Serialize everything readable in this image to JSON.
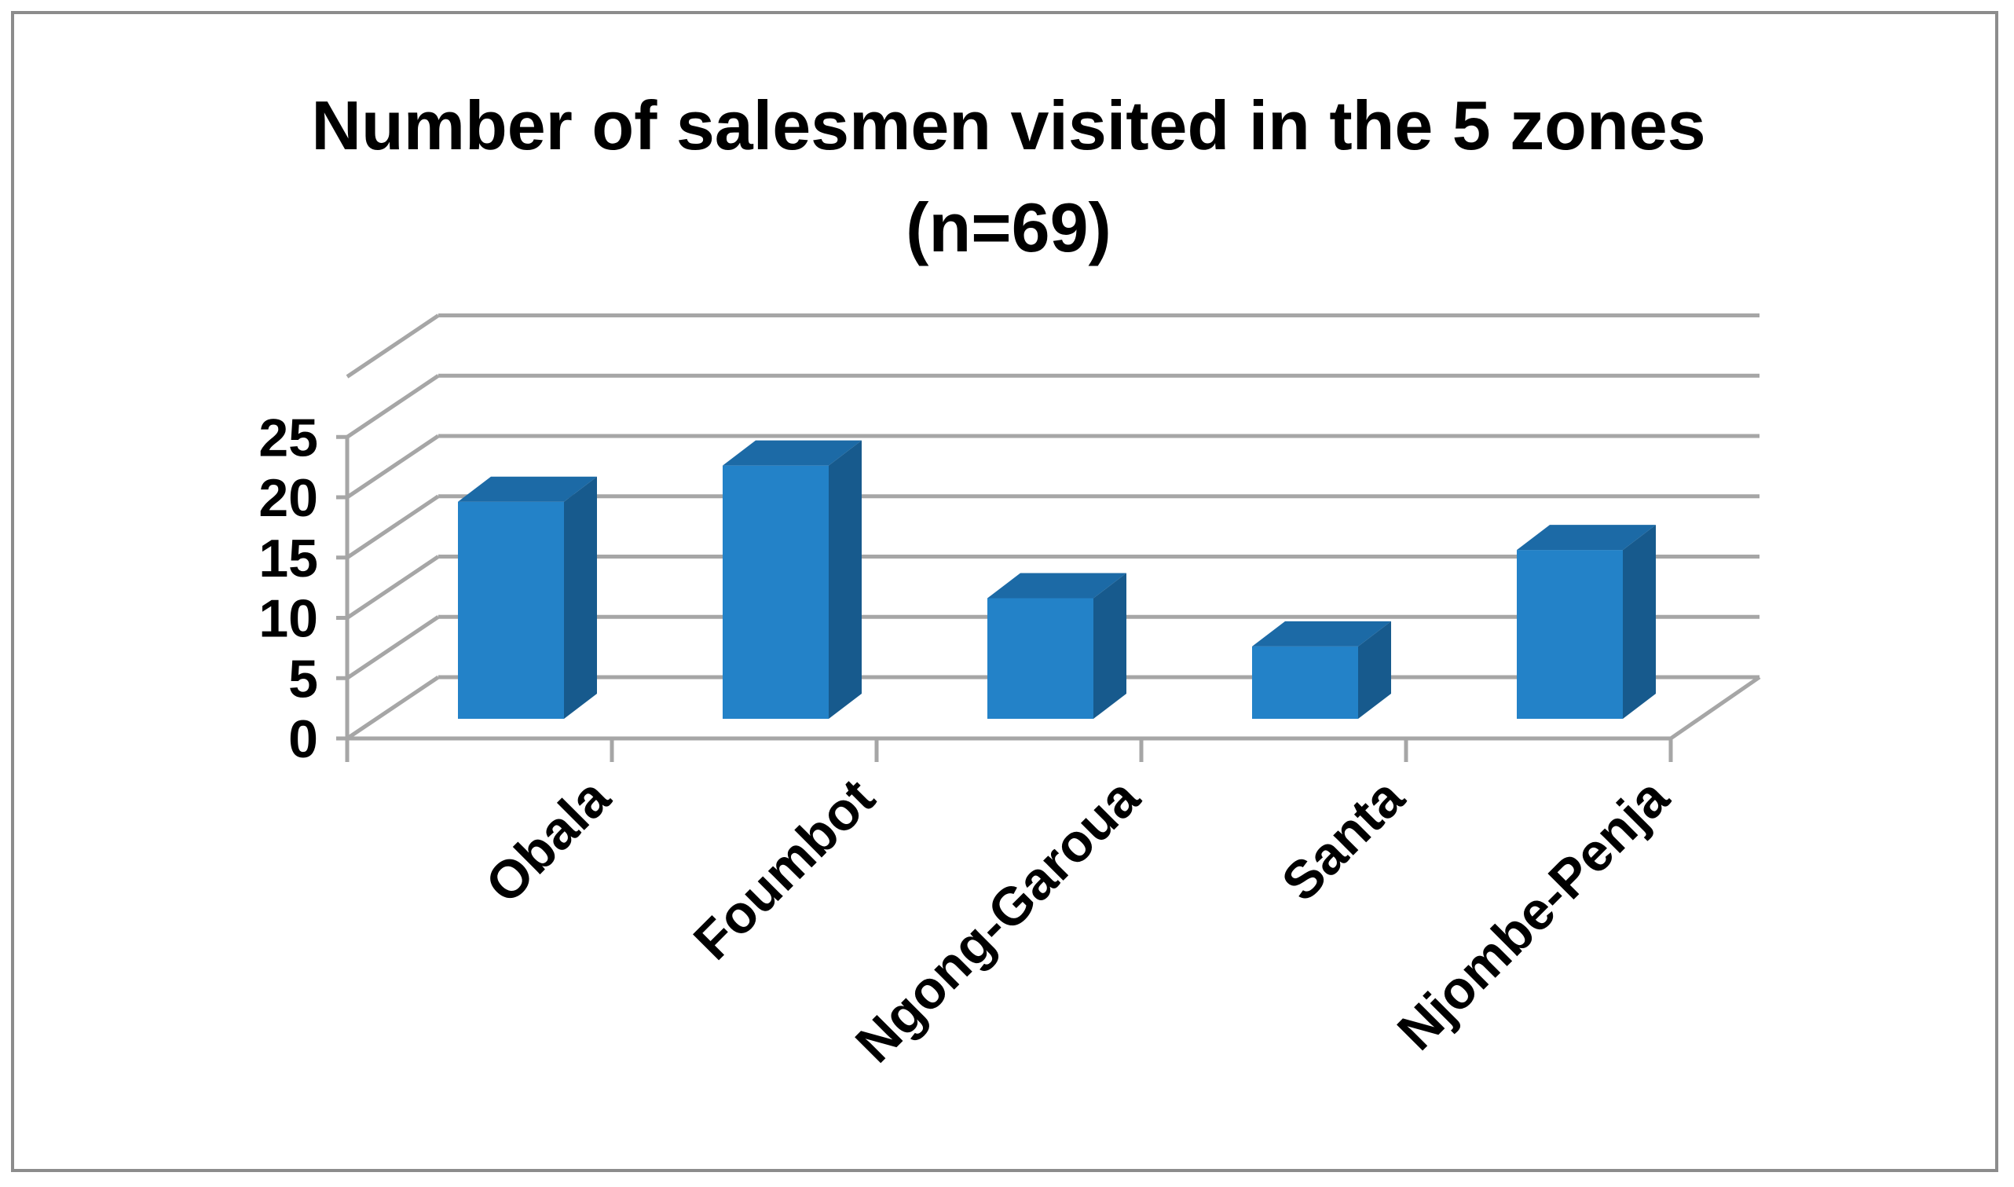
{
  "chart_data": {
    "type": "bar",
    "style": "3d-column",
    "title": "Number of salesmen visited in the 5 zones",
    "subtitle": "(n=69)",
    "categories": [
      "Obala",
      "Foumbot",
      "Ngong-Garoua",
      "Santa",
      "Njombe-Penja"
    ],
    "values": [
      18,
      21,
      10,
      6,
      14
    ],
    "yticks": [
      "0",
      "5",
      "10",
      "15",
      "20",
      "25"
    ],
    "ylim": [
      0,
      25
    ],
    "grid": true,
    "legend": "none",
    "colors": {
      "bar_front": "#2382c8",
      "bar_top": "#1c6aa6",
      "bar_side": "#175a8d",
      "grid": "#a6a6a6",
      "frame": "#8c8c8c"
    }
  }
}
